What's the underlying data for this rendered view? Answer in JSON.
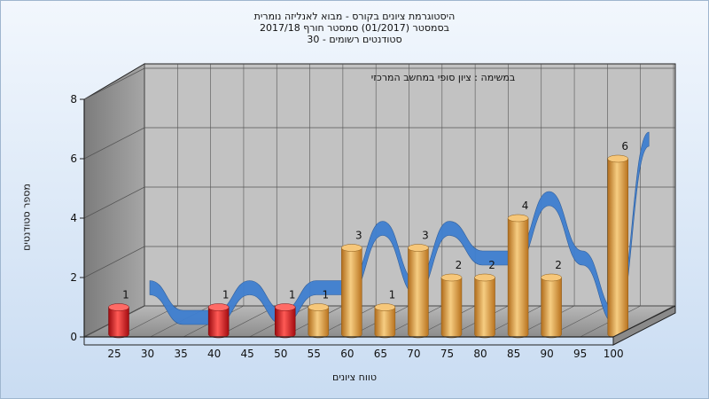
{
  "chart_data": {
    "type": "bar",
    "title_lines": [
      "היסטוגרמת ציונים בקורס - מבוא לאנליזה נומרית",
      "בסמסטר  (01/2017)  סמסטר חורף 2017/18",
      "סטודנטים רשומים - 30"
    ],
    "subtitle": "במשימה : ציון סופי במחשב המרכזי",
    "xlabel": "טווח ציונים",
    "ylabel": "מספר סטודנטים",
    "ylim": [
      0,
      8
    ],
    "yticks": [
      0,
      2,
      4,
      6,
      8
    ],
    "categories": [
      "25",
      "30",
      "35",
      "40",
      "45",
      "50",
      "55",
      "60",
      "65",
      "70",
      "75",
      "80",
      "85",
      "90",
      "95",
      "100"
    ],
    "values": [
      1,
      0,
      0,
      1,
      0,
      1,
      1,
      3,
      1,
      3,
      2,
      2,
      4,
      2,
      0,
      6
    ],
    "bar_colors": {
      "fail": "#e0141c",
      "pass": "#e8a040",
      "fail_below": 55
    },
    "cumulative_ribbon": {
      "colors": [
        "#6f6f6f",
        "#3f7fd0"
      ]
    },
    "grid": true,
    "style": "3d-cylinder"
  }
}
